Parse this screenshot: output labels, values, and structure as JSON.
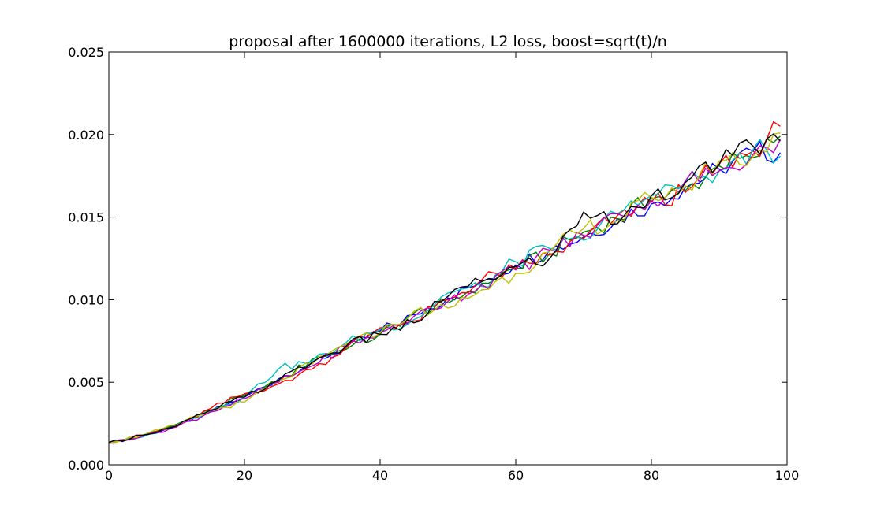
{
  "chart_data": {
    "type": "line",
    "title": "proposal after 1600000 iterations, L2 loss, boost=sqrt(t)/n",
    "xlabel": "",
    "ylabel": "",
    "xlim": [
      0,
      100
    ],
    "ylim": [
      0,
      0.025
    ],
    "x_ticks": [
      0,
      20,
      40,
      60,
      80,
      100
    ],
    "x_tick_labels": [
      "0",
      "20",
      "40",
      "60",
      "80",
      "100"
    ],
    "y_ticks": [
      0,
      0.005,
      0.01,
      0.015,
      0.02,
      0.025
    ],
    "y_tick_labels": [
      "0.000",
      "0.005",
      "0.010",
      "0.015",
      "0.020",
      "0.025"
    ],
    "grid": false,
    "legend": "none",
    "x": [
      0,
      5,
      10,
      15,
      20,
      25,
      30,
      35,
      40,
      45,
      50,
      55,
      60,
      65,
      70,
      75,
      80,
      85,
      90,
      95,
      99
    ],
    "series": [
      {
        "color": "#0000ff",
        "values": [
          0.00135,
          0.0017,
          0.0024,
          0.0032,
          0.0041,
          0.0052,
          0.0062,
          0.0071,
          0.0081,
          0.0091,
          0.0101,
          0.0111,
          0.0121,
          0.013,
          0.0138,
          0.0149,
          0.0158,
          0.0168,
          0.0179,
          0.019,
          0.0189
        ]
      },
      {
        "color": "#008000",
        "values": [
          0.00135,
          0.00175,
          0.00245,
          0.0033,
          0.0042,
          0.005,
          0.0064,
          0.007,
          0.0079,
          0.0092,
          0.0098,
          0.011,
          0.0119,
          0.0128,
          0.0141,
          0.0149,
          0.0161,
          0.0166,
          0.0181,
          0.0186,
          0.0199
        ]
      },
      {
        "color": "#ff0000",
        "values": [
          0.00135,
          0.0018,
          0.0023,
          0.0034,
          0.0043,
          0.0049,
          0.0058,
          0.0071,
          0.0083,
          0.0087,
          0.01,
          0.0112,
          0.0119,
          0.0127,
          0.0137,
          0.0151,
          0.0159,
          0.0165,
          0.0182,
          0.019,
          0.0205
        ]
      },
      {
        "color": "#00bfbf",
        "values": [
          0.00135,
          0.0017,
          0.0024,
          0.0033,
          0.0041,
          0.0058,
          0.0063,
          0.0074,
          0.0082,
          0.0088,
          0.0104,
          0.0108,
          0.0123,
          0.0131,
          0.0136,
          0.0152,
          0.0163,
          0.0171,
          0.0178,
          0.0191,
          0.0187
        ]
      },
      {
        "color": "#bf00bf",
        "values": [
          0.00135,
          0.00175,
          0.0023,
          0.0032,
          0.004,
          0.005,
          0.006,
          0.0072,
          0.008,
          0.009,
          0.0099,
          0.0109,
          0.0118,
          0.013,
          0.0139,
          0.0152,
          0.016,
          0.0172,
          0.0178,
          0.0188,
          0.0197
        ]
      },
      {
        "color": "#bfbf00",
        "values": [
          0.00135,
          0.0018,
          0.0024,
          0.0033,
          0.0038,
          0.0051,
          0.0061,
          0.0073,
          0.008,
          0.0093,
          0.0095,
          0.0106,
          0.0116,
          0.0129,
          0.0143,
          0.0148,
          0.0162,
          0.0169,
          0.0184,
          0.0187,
          0.0201
        ]
      },
      {
        "color": "#000000",
        "values": [
          0.00135,
          0.0018,
          0.00235,
          0.0033,
          0.0041,
          0.0051,
          0.0062,
          0.0072,
          0.0079,
          0.0086,
          0.0102,
          0.0111,
          0.012,
          0.0125,
          0.0153,
          0.0146,
          0.0163,
          0.0171,
          0.0182,
          0.0193,
          0.0196
        ]
      }
    ]
  }
}
